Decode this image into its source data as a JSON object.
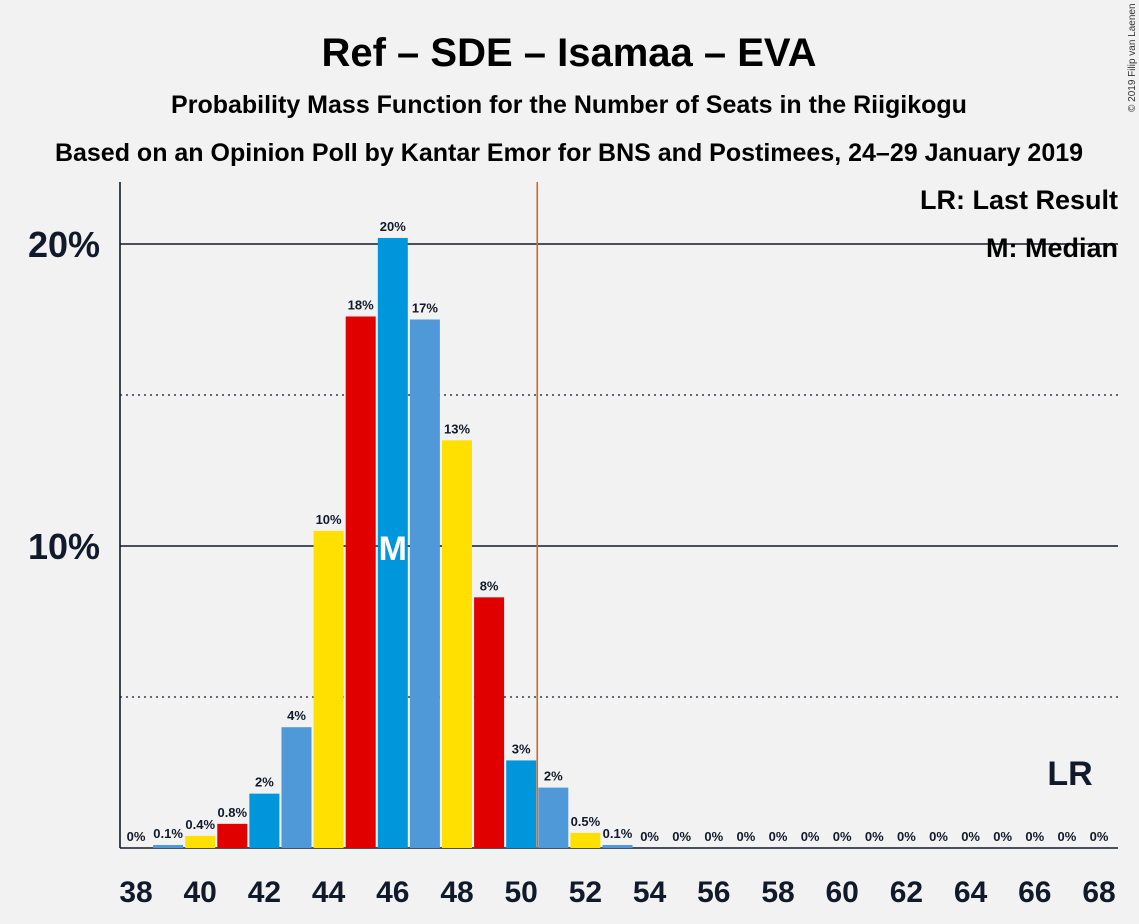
{
  "title": "Ref – SDE – Isamaa – EVA",
  "subtitle1": "Probability Mass Function for the Number of Seats in the Riigikogu",
  "subtitle2": "Based on an Opinion Poll by Kantar Emor for BNS and Postimees, 24–29 January 2019",
  "copyright": "© 2019 Filip van Laenen",
  "legend": {
    "lr": "LR: Last Result",
    "median": "M: Median"
  },
  "lr_label": "LR",
  "median_label": "M",
  "colors": {
    "yellow": "#ffe000",
    "red": "#e10000",
    "blue": "#0096dc",
    "lightblue": "#5099d8",
    "lastresult": "#d2691e",
    "text": "#111a2a",
    "background": "#f2f2f2"
  },
  "chart_data": {
    "type": "bar",
    "x": [
      38,
      39,
      40,
      41,
      42,
      43,
      44,
      45,
      46,
      47,
      48,
      49,
      50,
      51,
      52,
      53,
      54,
      55,
      56,
      57,
      58,
      59,
      60,
      61,
      62,
      63,
      64,
      65,
      66,
      67,
      68
    ],
    "values": [
      0,
      0.1,
      0.4,
      0.8,
      1.8,
      4,
      10.5,
      17.6,
      20.2,
      17.5,
      13.5,
      8.3,
      2.9,
      2,
      0.5,
      0.1,
      0,
      0,
      0,
      0,
      0,
      0,
      0,
      0,
      0,
      0,
      0,
      0,
      0,
      0,
      0
    ],
    "labels": [
      "0%",
      "0.1%",
      "0.4%",
      "0.8%",
      "2%",
      "4%",
      "10%",
      "18%",
      "20%",
      "17%",
      "13%",
      "8%",
      "3%",
      "2%",
      "0.5%",
      "0.1%",
      "0%",
      "0%",
      "0%",
      "0%",
      "0%",
      "0%",
      "0%",
      "0%",
      "0%",
      "0%",
      "0%",
      "0%",
      "0%",
      "0%",
      "0%"
    ],
    "bar_colors": [
      "yellow",
      "lightblue",
      "yellow",
      "red",
      "blue",
      "lightblue",
      "yellow",
      "red",
      "blue",
      "lightblue",
      "yellow",
      "red",
      "blue",
      "lightblue",
      "yellow",
      "lightblue",
      "yellow",
      "red",
      "blue",
      "lightblue",
      "yellow",
      "red",
      "blue",
      "lightblue",
      "yellow",
      "red",
      "blue",
      "lightblue",
      "yellow",
      "red",
      "blue"
    ],
    "x_ticks": [
      38,
      40,
      42,
      44,
      46,
      48,
      50,
      52,
      54,
      56,
      58,
      60,
      62,
      64,
      66,
      68
    ],
    "x_tick_labels": [
      "38",
      "40",
      "42",
      "44",
      "46",
      "48",
      "50",
      "52",
      "54",
      "56",
      "58",
      "60",
      "62",
      "64",
      "66",
      "68"
    ],
    "y_ticks": [
      10,
      20
    ],
    "y_tick_labels": [
      "10%",
      "20%"
    ],
    "ylim": [
      0,
      22
    ],
    "median": 46,
    "last_result": 50.5,
    "grid": true,
    "legend_position": "top-right"
  }
}
